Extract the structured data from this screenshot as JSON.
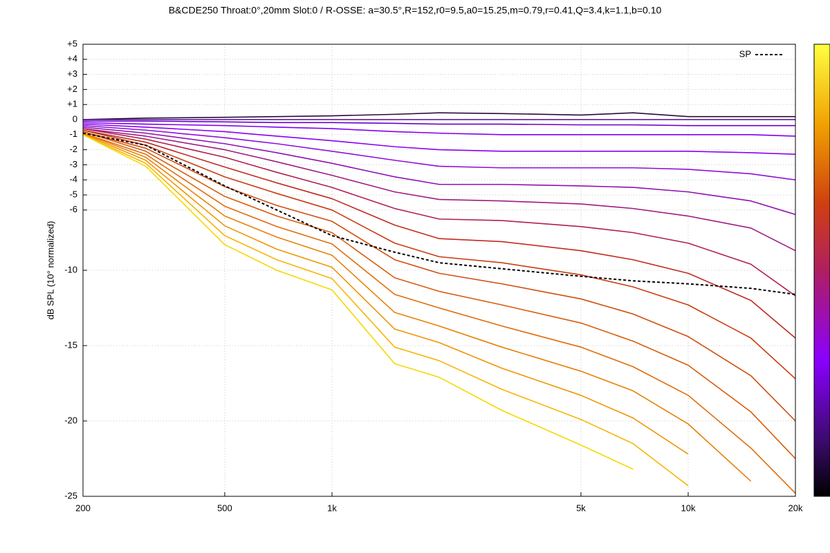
{
  "chart_data": {
    "type": "line",
    "title": "B&CDE250 Throat:0°,20mm Slot:0 / R-OSSE: a=30.5°,R=152,r0=9.5,a0=15.25,m=0.79,r=0.41,Q=3.4,k=1.1,b=0.10",
    "y_label": "dB SPL (10° normalized)",
    "x_scale": "log",
    "grid": true,
    "legend": "top-right",
    "x": [
      200,
      300,
      500,
      700,
      1000,
      1500,
      2000,
      3000,
      5000,
      7000,
      10000,
      15000,
      20000
    ],
    "xlim": [
      200,
      20000
    ],
    "xticks": [
      200,
      500,
      {
        "value": 1000,
        "label": "1k"
      },
      {
        "value": 5000,
        "label": "5k"
      },
      {
        "value": 10000,
        "label": "10k"
      },
      {
        "value": 20000,
        "label": "20k"
      }
    ],
    "ylim": [
      -25,
      5
    ],
    "yticks": [
      {
        "value": 5,
        "label": "+5"
      },
      {
        "value": 4,
        "label": "+4"
      },
      {
        "value": 3,
        "label": "+3"
      },
      {
        "value": 2,
        "label": "+2"
      },
      {
        "value": 1,
        "label": "+1"
      },
      0,
      -1,
      -2,
      -3,
      -4,
      -5,
      -6,
      -10,
      -15,
      -20,
      -25
    ],
    "series": [
      {
        "color": "#2b0a3d",
        "values": [
          0.0,
          0.1,
          0.15,
          0.2,
          0.25,
          0.35,
          0.45,
          0.4,
          0.3,
          0.45,
          0.2,
          0.2,
          0.2
        ]
      },
      {
        "color": "#4b0c8c",
        "values": [
          0,
          0,
          0,
          0,
          0,
          0,
          0,
          0,
          0,
          0,
          0,
          0,
          0
        ]
      },
      {
        "color": "#6a00c8",
        "values": [
          -0.1,
          -0.1,
          -0.15,
          -0.2,
          -0.2,
          -0.25,
          -0.3,
          -0.3,
          -0.35,
          -0.35,
          -0.4,
          -0.4,
          -0.4
        ]
      },
      {
        "color": "#8000f0",
        "values": [
          -0.2,
          -0.3,
          -0.4,
          -0.5,
          -0.6,
          -0.8,
          -0.9,
          -1.0,
          -1.0,
          -1.0,
          -1.0,
          -1.0,
          -1.1
        ]
      },
      {
        "color": "#8a00f5",
        "values": [
          -0.3,
          -0.5,
          -0.8,
          -1.1,
          -1.4,
          -1.8,
          -2.0,
          -2.1,
          -2.1,
          -2.1,
          -2.1,
          -2.2,
          -2.3
        ]
      },
      {
        "color": "#8e10d8",
        "values": [
          -0.4,
          -0.7,
          -1.2,
          -1.6,
          -2.1,
          -2.7,
          -3.1,
          -3.2,
          -3.2,
          -3.2,
          -3.3,
          -3.6,
          -4.0
        ]
      },
      {
        "color": "#9010b0",
        "values": [
          -0.5,
          -0.9,
          -1.6,
          -2.2,
          -2.9,
          -3.8,
          -4.3,
          -4.3,
          -4.4,
          -4.5,
          -4.8,
          -5.4,
          -6.3
        ]
      },
      {
        "color": "#a01a80",
        "values": [
          -0.6,
          -1.1,
          -2.0,
          -2.8,
          -3.7,
          -4.8,
          -5.3,
          -5.4,
          -5.6,
          -5.9,
          -6.4,
          -7.2,
          -8.7
        ]
      },
      {
        "color": "#b01e50",
        "values": [
          -0.6,
          -1.3,
          -2.5,
          -3.5,
          -4.5,
          -5.9,
          -6.6,
          -6.7,
          -7.1,
          -7.5,
          -8.2,
          -9.6,
          -11.7
        ]
      },
      {
        "color": "#c02a20",
        "values": [
          -0.7,
          -1.5,
          -3.15,
          -4.2,
          -5.25,
          -7.0,
          -7.9,
          -8.1,
          -8.7,
          -9.3,
          -10.2,
          -12.0,
          -14.5
        ]
      },
      {
        "color": "#c83c10",
        "values": [
          -0.7,
          -1.7,
          -3.8,
          -4.9,
          -6.0,
          -8.2,
          -9.1,
          -9.5,
          -10.3,
          -11.1,
          -12.3,
          -14.5,
          -17.2
        ]
      },
      {
        "color": "#d04c0c",
        "values": [
          -0.8,
          -1.9,
          -4.45,
          -5.7,
          -6.75,
          -9.3,
          -10.2,
          -10.9,
          -11.9,
          -12.9,
          -14.4,
          -17.0,
          -20.0
        ]
      },
      {
        "color": "#d85c0a",
        "values": [
          -0.8,
          -2.1,
          -5.1,
          -6.4,
          -7.5,
          -10.5,
          -11.4,
          -12.3,
          -13.5,
          -14.7,
          -16.3,
          -19.4,
          -22.5
        ]
      },
      {
        "color": "#e06c08",
        "values": [
          -0.9,
          -2.3,
          -5.75,
          -7.1,
          -8.25,
          -11.6,
          -12.5,
          -13.7,
          -15.1,
          -16.4,
          -18.3,
          -21.8,
          -24.8
        ]
      },
      {
        "color": "#e88006",
        "values": [
          -0.9,
          -2.5,
          -6.4,
          -7.8,
          -9.0,
          -12.8,
          -13.7,
          -15.1,
          -16.7,
          -18.0,
          -20.2,
          -24.0,
          null
        ]
      },
      {
        "color": "#f09404",
        "values": [
          -0.95,
          -2.7,
          -7.05,
          -8.6,
          -9.8,
          -13.9,
          -14.8,
          -16.5,
          -18.3,
          -19.8,
          -22.2,
          null,
          null
        ]
      },
      {
        "color": "#f8b402",
        "values": [
          -1.0,
          -2.9,
          -7.7,
          -9.3,
          -10.55,
          -15.1,
          -16.0,
          -17.9,
          -19.9,
          -21.5,
          -24.3,
          null,
          null
        ]
      },
      {
        "color": "#f5d800",
        "values": [
          -1.0,
          -3.1,
          -8.3,
          -10.0,
          -11.3,
          -16.2,
          -17.1,
          -19.3,
          -21.6,
          -23.2,
          null,
          null,
          null
        ]
      },
      {
        "name": "SP",
        "color": "#000000",
        "dash": true,
        "values": [
          -0.9,
          -1.7,
          -4.4,
          -6.0,
          -7.7,
          -8.8,
          -9.5,
          -9.9,
          -10.4,
          -10.7,
          -10.9,
          -11.2,
          -11.6
        ]
      }
    ]
  }
}
